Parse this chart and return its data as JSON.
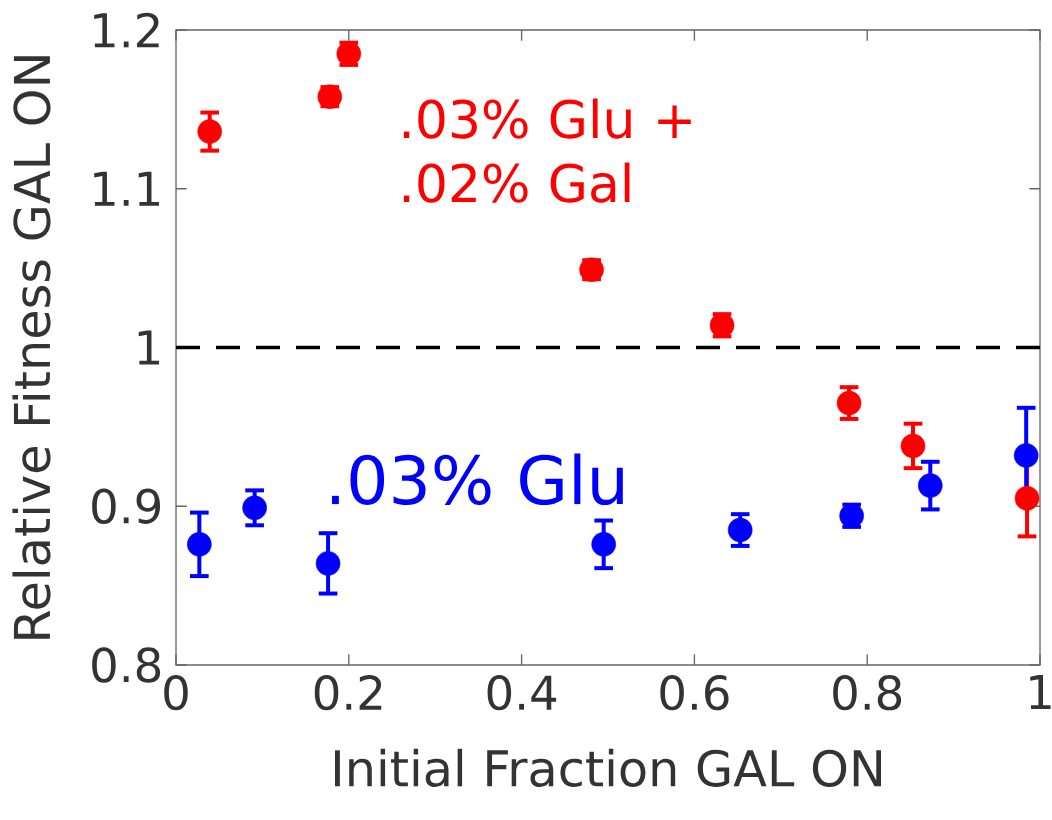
{
  "chart_data": {
    "type": "scatter",
    "xlabel": "Initial Fraction GAL ON",
    "ylabel": "Relative Fitness GAL ON",
    "xlim": [
      0,
      1
    ],
    "ylim": [
      0.8,
      1.2
    ],
    "xticks": [
      0,
      0.2,
      0.4,
      0.6,
      0.8,
      1
    ],
    "yticks": [
      0.8,
      0.9,
      1,
      1.1,
      1.2
    ],
    "grid": false,
    "legend": "left",
    "marker": "circle",
    "series": [
      {
        "name": ".03% Glu + .02% Gal",
        "color": "#ff0000",
        "x": [
          0.039,
          0.178,
          0.2,
          0.481,
          0.632,
          0.779,
          0.853,
          0.985
        ],
        "values": [
          1.136,
          1.158,
          1.185,
          1.049,
          1.014,
          0.965,
          0.938,
          0.905
        ],
        "errors": [
          0.012,
          0.006,
          0.007,
          0.006,
          0.007,
          0.01,
          0.014,
          0.024
        ]
      },
      {
        "name": ".03% Glu",
        "color": "#0000ff",
        "x": [
          0.027,
          0.091,
          0.176,
          0.495,
          0.653,
          0.782,
          0.873,
          0.984
        ],
        "values": [
          0.876,
          0.899,
          0.864,
          0.876,
          0.885,
          0.894,
          0.913,
          0.932
        ],
        "errors": [
          0.02,
          0.011,
          0.019,
          0.015,
          0.01,
          0.007,
          0.015,
          0.03
        ]
      }
    ],
    "ref_lines": [
      {
        "axis": "y",
        "value": 1,
        "color": "#000000",
        "line_style": "dashed"
      }
    ]
  }
}
